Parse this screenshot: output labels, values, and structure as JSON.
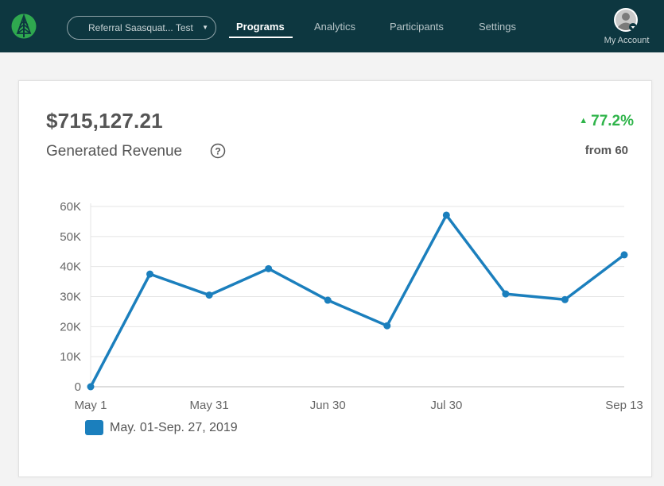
{
  "header": {
    "program_selector": "Referral Saasquat... Test",
    "nav": [
      {
        "label": "Programs",
        "active": true
      },
      {
        "label": "Analytics",
        "active": false
      },
      {
        "label": "Participants",
        "active": false
      },
      {
        "label": "Settings",
        "active": false
      }
    ],
    "account_label": "My Account",
    "brand_color": "#0d3740"
  },
  "metric": {
    "amount": "$715,127.21",
    "label": "Generated Revenue",
    "change": "77.2%",
    "change_color": "#2fb44a",
    "from_label": "from",
    "from_value": "60"
  },
  "chart_data": {
    "type": "line",
    "title": "",
    "xlabel": "",
    "ylabel": "",
    "x_ticks": [
      "May 1",
      "May 31",
      "Jun 30",
      "Jul 30",
      "Sep 13"
    ],
    "y_ticks": [
      "0",
      "10K",
      "20K",
      "30K",
      "40K",
      "50K",
      "60K"
    ],
    "ylim": [
      0,
      60000
    ],
    "grid": true,
    "series": [
      {
        "name": "May. 01-Sep. 27, 2019",
        "color": "#1b7fbd",
        "x": [
          "May 1",
          "May 16",
          "May 31",
          "Jun 15",
          "Jun 30",
          "Jul 15",
          "Jul 30",
          "Aug 14",
          "Aug 29",
          "Sep 13"
        ],
        "values": [
          0,
          37500,
          30500,
          39300,
          28800,
          20300,
          57100,
          30900,
          29000,
          43900
        ]
      }
    ],
    "legend_position": "bottom-left"
  }
}
